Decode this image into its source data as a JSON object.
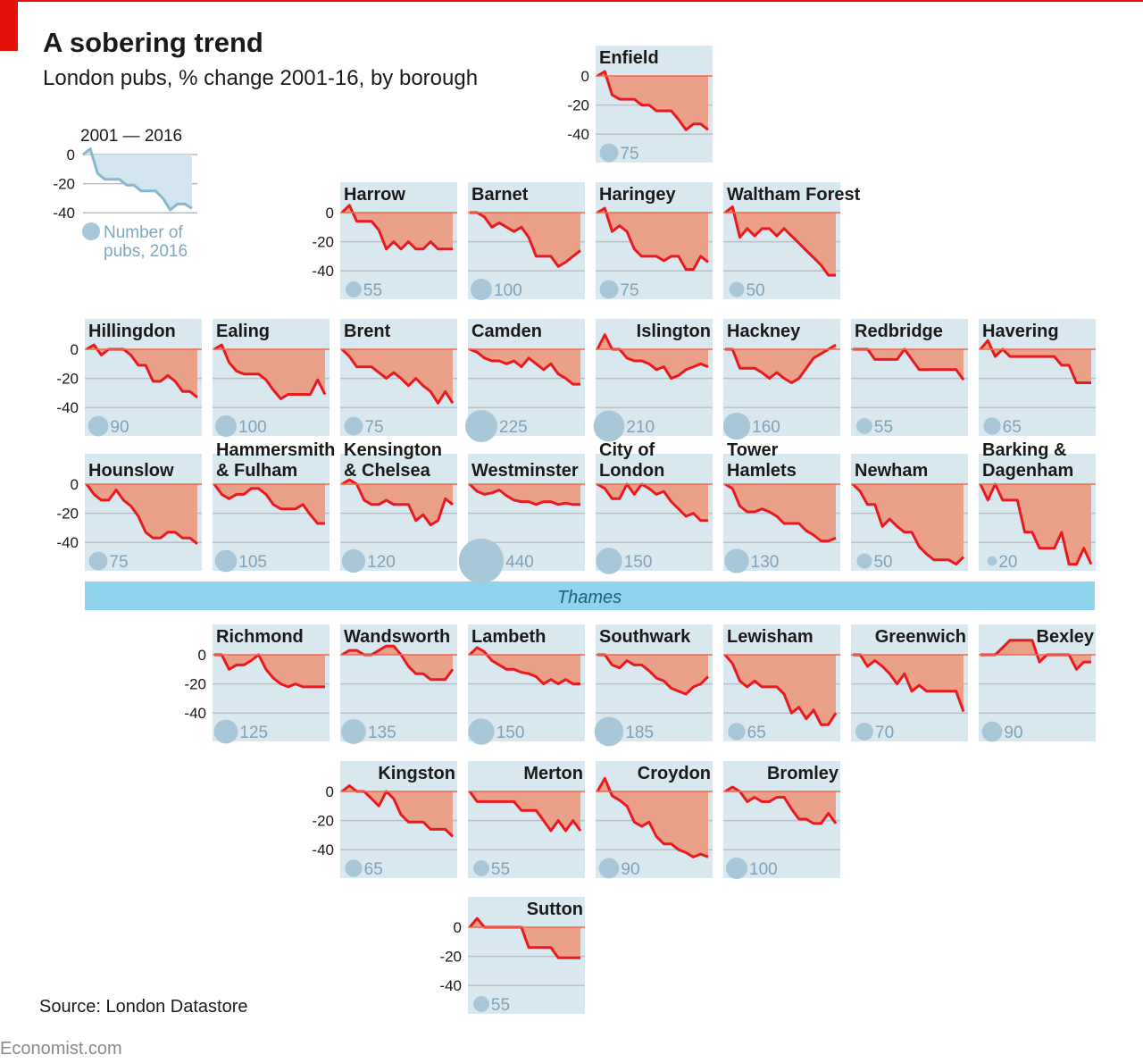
{
  "header": {
    "title": "A sobering trend",
    "subtitle": "London pubs, % change 2001-16, by borough"
  },
  "legend": {
    "years": "2001 — 2016",
    "circle_label_1": "Number of",
    "circle_label_2": "pubs, 2016",
    "values": [
      0,
      4,
      -13,
      -17,
      -17,
      -17,
      -21,
      -21,
      -25,
      -25,
      -25,
      -30,
      -38,
      -34,
      -34,
      -37
    ]
  },
  "river": "Thames",
  "footer": {
    "source": "Source: London Datastore",
    "brand": "Economist.com"
  },
  "colors": {
    "accent": "#e3120b",
    "line": "#e8191f",
    "fill": "#eba189",
    "tile": "#d9e7ef",
    "circle": "#a8c8da",
    "river": "#8dd4ec"
  },
  "chart_data": {
    "type": "line",
    "title": "A sobering trend",
    "subtitle": "London pubs, % change 2001-16, by borough",
    "x": [
      2001,
      2002,
      2003,
      2004,
      2005,
      2006,
      2007,
      2008,
      2009,
      2010,
      2011,
      2012,
      2013,
      2014,
      2015,
      2016
    ],
    "yticks": [
      "0",
      "-20",
      "-40"
    ],
    "ylim": [
      -55,
      12
    ],
    "grid": true,
    "series": [
      {
        "name": "Enfield",
        "label_lines": [
          "Enfield"
        ],
        "pubs_2016": "75",
        "values": [
          0,
          3,
          -13,
          -16,
          -16,
          -16,
          -20,
          -20,
          -24,
          -24,
          -24,
          -30,
          -37,
          -33,
          -33,
          -37
        ]
      },
      {
        "name": "Harrow",
        "label_lines": [
          "Harrow"
        ],
        "pubs_2016": "55",
        "values": [
          0,
          5,
          -6,
          -6,
          -6,
          -12,
          -25,
          -20,
          -25,
          -20,
          -25,
          -25,
          -20,
          -25,
          -25,
          -25
        ]
      },
      {
        "name": "Barnet",
        "label_lines": [
          "Barnet"
        ],
        "pubs_2016": "100",
        "values": [
          0,
          0,
          -3,
          -10,
          -7,
          -10,
          -13,
          -10,
          -17,
          -30,
          -30,
          -30,
          -37,
          -34,
          -30,
          -26
        ]
      },
      {
        "name": "Haringey",
        "label_lines": [
          "Haringey"
        ],
        "pubs_2016": "75",
        "values": [
          0,
          3,
          -13,
          -9,
          -13,
          -25,
          -30,
          -30,
          -30,
          -33,
          -30,
          -30,
          -39,
          -39,
          -30,
          -34
        ]
      },
      {
        "name": "Waltham Forest",
        "label_lines": [
          "Waltham Forest"
        ],
        "pubs_2016": "50",
        "values": [
          0,
          4,
          -17,
          -11,
          -16,
          -11,
          -11,
          -16,
          -11,
          -16,
          -21,
          -26,
          -31,
          -36,
          -43,
          -43
        ]
      },
      {
        "name": "Hillingdon",
        "label_lines": [
          "Hillingdon"
        ],
        "pubs_2016": "90",
        "values": [
          0,
          3,
          -4,
          0,
          0,
          0,
          -4,
          -11,
          -11,
          -22,
          -22,
          -18,
          -22,
          -29,
          -29,
          -33
        ]
      },
      {
        "name": "Ealing",
        "label_lines": [
          "Ealing"
        ],
        "pubs_2016": "100",
        "values": [
          0,
          3,
          -9,
          -15,
          -17,
          -17,
          -17,
          -21,
          -28,
          -34,
          -31,
          -31,
          -31,
          -31,
          -21,
          -31
        ]
      },
      {
        "name": "Brent",
        "label_lines": [
          "Brent"
        ],
        "pubs_2016": "75",
        "values": [
          0,
          -5,
          -12,
          -12,
          -12,
          -16,
          -20,
          -16,
          -20,
          -25,
          -20,
          -25,
          -29,
          -37,
          -29,
          -37
        ]
      },
      {
        "name": "Camden",
        "label_lines": [
          "Camden"
        ],
        "pubs_2016": "225",
        "values": [
          0,
          -2,
          -6,
          -8,
          -8,
          -10,
          -8,
          -12,
          -6,
          -10,
          -14,
          -10,
          -17,
          -20,
          -24,
          -24
        ]
      },
      {
        "name": "Islington",
        "label_lines": [
          "Islington"
        ],
        "pubs_2016": "210",
        "values": [
          0,
          10,
          0,
          0,
          -6,
          -8,
          -8,
          -10,
          -14,
          -12,
          -20,
          -18,
          -14,
          -12,
          -10,
          -12
        ]
      },
      {
        "name": "Hackney",
        "label_lines": [
          "Hackney"
        ],
        "pubs_2016": "160",
        "values": [
          0,
          0,
          -13,
          -13,
          -13,
          -16,
          -20,
          -16,
          -20,
          -23,
          -20,
          -13,
          -6,
          -3,
          0,
          3
        ]
      },
      {
        "name": "Redbridge",
        "label_lines": [
          "Redbridge"
        ],
        "pubs_2016": "55",
        "values": [
          0,
          0,
          0,
          -7,
          -7,
          -7,
          -7,
          0,
          -7,
          -14,
          -14,
          -14,
          -14,
          -14,
          -14,
          -21
        ]
      },
      {
        "name": "Havering",
        "label_lines": [
          "Havering"
        ],
        "pubs_2016": "65",
        "values": [
          0,
          6,
          -5,
          0,
          -5,
          -5,
          -5,
          -5,
          -5,
          -5,
          -5,
          -11,
          -11,
          -23,
          -23,
          -23
        ]
      },
      {
        "name": "Hounslow",
        "label_lines": [
          "Hounslow"
        ],
        "pubs_2016": "75",
        "values": [
          0,
          -7,
          -11,
          -11,
          -4,
          -11,
          -15,
          -22,
          -33,
          -37,
          -37,
          -33,
          -33,
          -37,
          -37,
          -41
        ]
      },
      {
        "name": "Hammersmith & Fulham",
        "label_lines": [
          "Hammersmith",
          "& Fulham"
        ],
        "pubs_2016": "105",
        "values": [
          0,
          -7,
          -10,
          -7,
          -7,
          -3,
          -3,
          -7,
          -14,
          -17,
          -17,
          -17,
          -14,
          -21,
          -27,
          -27
        ]
      },
      {
        "name": "Kensington & Chelsea",
        "label_lines": [
          "Kensington",
          "& Chelsea"
        ],
        "pubs_2016": "120",
        "values": [
          0,
          3,
          0,
          -11,
          -14,
          -14,
          -11,
          -14,
          -14,
          -14,
          -25,
          -21,
          -28,
          -25,
          -10,
          -14
        ]
      },
      {
        "name": "Westminster",
        "label_lines": [
          "Westminster"
        ],
        "pubs_2016": "440",
        "values": [
          0,
          -5,
          -7,
          -6,
          -4,
          -8,
          -11,
          -12,
          -12,
          -14,
          -12,
          -12,
          -14,
          -13,
          -14,
          -14
        ]
      },
      {
        "name": "City of London",
        "label_lines": [
          "City of",
          "London"
        ],
        "pubs_2016": "150",
        "values": [
          0,
          -3,
          -10,
          -10,
          0,
          -7,
          0,
          -3,
          -7,
          -5,
          -12,
          -17,
          -22,
          -20,
          -25,
          -25
        ]
      },
      {
        "name": "Tower Hamlets",
        "label_lines": [
          "Tower",
          "Hamlets"
        ],
        "pubs_2016": "130",
        "values": [
          0,
          -3,
          -15,
          -19,
          -19,
          -17,
          -19,
          -22,
          -27,
          -27,
          -27,
          -32,
          -35,
          -39,
          -39,
          -37
        ]
      },
      {
        "name": "Newham",
        "label_lines": [
          "Newham"
        ],
        "pubs_2016": "50",
        "values": [
          0,
          -5,
          -14,
          -14,
          -29,
          -24,
          -29,
          -33,
          -33,
          -43,
          -48,
          -52,
          -52,
          -52,
          -55,
          -50
        ]
      },
      {
        "name": "Barking & Dagenham",
        "label_lines": [
          "Barking &",
          "Dagenham"
        ],
        "pubs_2016": "20",
        "values": [
          0,
          -11,
          0,
          -11,
          -11,
          -11,
          -33,
          -33,
          -44,
          -44,
          -44,
          -33,
          -55,
          -55,
          -44,
          -55
        ]
      },
      {
        "name": "Richmond",
        "label_lines": [
          "Richmond"
        ],
        "pubs_2016": "125",
        "values": [
          0,
          0,
          -10,
          -7,
          -7,
          -4,
          0,
          -10,
          -16,
          -20,
          -22,
          -20,
          -22,
          -22,
          -22,
          -22
        ]
      },
      {
        "name": "Wandsworth",
        "label_lines": [
          "Wandsworth"
        ],
        "pubs_2016": "135",
        "values": [
          0,
          3,
          3,
          0,
          0,
          3,
          6,
          6,
          0,
          -8,
          -13,
          -13,
          -17,
          -17,
          -17,
          -10
        ]
      },
      {
        "name": "Lambeth",
        "label_lines": [
          "Lambeth"
        ],
        "pubs_2016": "150",
        "values": [
          0,
          5,
          2,
          -4,
          -7,
          -10,
          -10,
          -12,
          -13,
          -15,
          -20,
          -17,
          -20,
          -17,
          -20,
          -20
        ]
      },
      {
        "name": "Southwark",
        "label_lines": [
          "Southwark"
        ],
        "pubs_2016": "185",
        "values": [
          0,
          0,
          -7,
          -9,
          -4,
          -7,
          -7,
          -11,
          -16,
          -18,
          -23,
          -25,
          -27,
          -22,
          -20,
          -15
        ]
      },
      {
        "name": "Lewisham",
        "label_lines": [
          "Lewisham"
        ],
        "pubs_2016": "65",
        "values": [
          0,
          -6,
          -18,
          -22,
          -18,
          -22,
          -22,
          -22,
          -27,
          -40,
          -36,
          -44,
          -38,
          -48,
          -48,
          -40
        ]
      },
      {
        "name": "Greenwich",
        "label_lines": [
          "Greenwich"
        ],
        "pubs_2016": "70",
        "values": [
          0,
          0,
          -8,
          -4,
          -8,
          -13,
          -20,
          -13,
          -25,
          -21,
          -25,
          -25,
          -25,
          -25,
          -25,
          -39
        ]
      },
      {
        "name": "Bexley",
        "label_lines": [
          "Bexley"
        ],
        "pubs_2016": "90",
        "values": [
          0,
          0,
          0,
          5,
          10,
          10,
          10,
          10,
          -5,
          0,
          0,
          0,
          0,
          -10,
          -5,
          -5
        ]
      },
      {
        "name": "Kingston",
        "label_lines": [
          "Kingston"
        ],
        "pubs_2016": "65",
        "values": [
          0,
          4,
          0,
          0,
          -5,
          -10,
          0,
          -5,
          -16,
          -21,
          -21,
          -21,
          -26,
          -26,
          -26,
          -31
        ]
      },
      {
        "name": "Merton",
        "label_lines": [
          "Merton"
        ],
        "pubs_2016": "55",
        "values": [
          0,
          -7,
          -7,
          -7,
          -7,
          -7,
          -7,
          -13,
          -13,
          -13,
          -20,
          -27,
          -20,
          -27,
          -20,
          -27
        ]
      },
      {
        "name": "Croydon",
        "label_lines": [
          "Croydon"
        ],
        "pubs_2016": "90",
        "values": [
          0,
          9,
          -3,
          -6,
          -10,
          -21,
          -24,
          -21,
          -31,
          -36,
          -36,
          -40,
          -42,
          -45,
          -43,
          -45
        ]
      },
      {
        "name": "Bromley",
        "label_lines": [
          "Bromley"
        ],
        "pubs_2016": "100",
        "values": [
          0,
          3,
          0,
          -7,
          -4,
          -7,
          -7,
          -4,
          -4,
          -12,
          -19,
          -19,
          -22,
          -22,
          -15,
          -22
        ]
      },
      {
        "name": "Sutton",
        "label_lines": [
          "Sutton"
        ],
        "pubs_2016": "55",
        "values": [
          0,
          6,
          0,
          0,
          0,
          0,
          0,
          0,
          -14,
          -14,
          -14,
          -14,
          -21,
          -21,
          -21,
          -21
        ]
      }
    ]
  }
}
